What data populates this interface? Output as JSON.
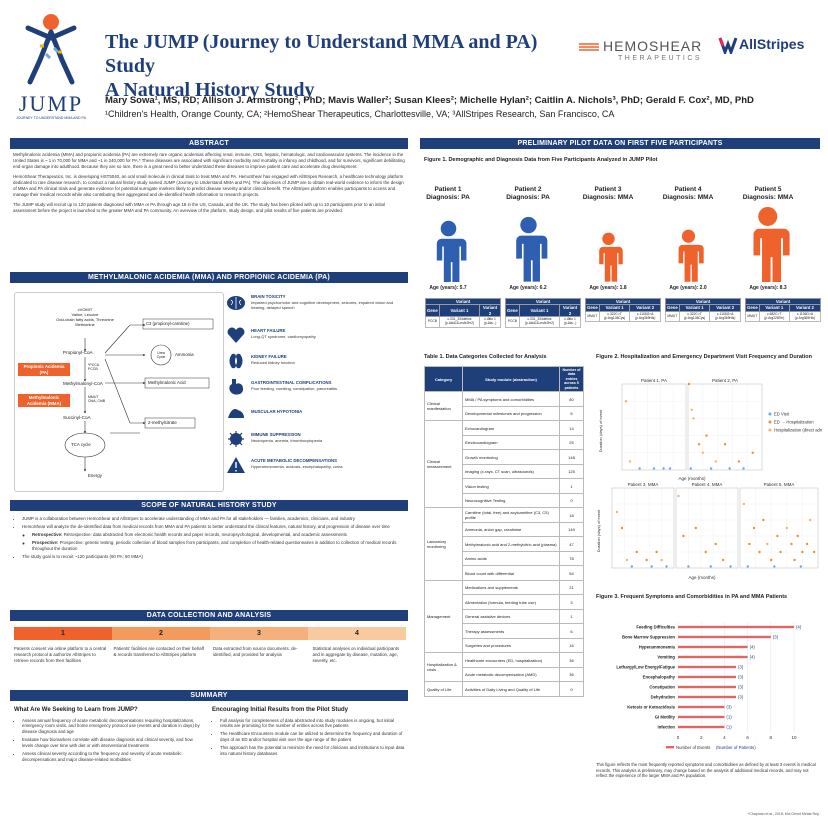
{
  "header": {
    "title_line1": "The JUMP (Journey to Understand MMA and PA) Study",
    "title_line2": "A Natural History Study",
    "authors": "Mary Sowa¹, MS, RD; Allison J. Armstrong², PhD; Mavis Waller²; Susan Klees²; Michelle Hylan²; Caitlin A. Nichols³, PhD; Gerald F. Cox², MD, PhD",
    "affiliations": "¹Children's Health, Orange County, CA; ²HemoShear Therapeutics, Charlottesville, VA; ³AllStripes Research, San Francisco, CA",
    "logo_jump": "JUMP",
    "logo_jump_sub": "JOURNEY TO UNDERSTAND MMA AND PA",
    "logo_hemoshear": "HEMOSHEAR",
    "logo_hemoshear_sub": "THERAPEUTICS",
    "logo_allstripes": "AllStripes"
  },
  "abstract": {
    "heading": "ABSTRACT",
    "p1": "Methylmalonic acidemia (MMA) and propionic acidemia (PA) are extremely rare organic acidemias affecting renal, immune, CNS, hepatic, hematologic, and cardiovascular systems. The incidence in the United States is ~ 1 in 70,000 for MMA and ~1 in 240,000 for PA.* These diseases are associated with significant morbidity and mortality in infancy and childhood, and for survivors, significant debilitating end-organ damage into adulthood. Because they are so rare, there is a great need to better understand these diseases to improve patient care and accelerate drug development.",
    "p2": "HemoShear Therapeutics, Inc. is developing HST5040, an oral small molecule in clinical trials to treat MMA and PA. HemoShear has engaged with AllStripes Research, a healthcare technology platform dedicated to rare disease research, to conduct a natural history study named JUMP (Journey to Understand MMA and PA). The objectives of JUMP are to obtain real-world evidence to inform the design of MMA and PA clinical trials and generate evidence for potential surrogate markers likely to predict disease severity and/or clinical benefit. The AllStripes platform enables participants to access and manage their medical records while also contributing their aggregated and de-identified health information to research projects.",
    "p3": "The JUMP study will recruit up to 120 patients diagnosed with MMA or PA through age 18 in the US, Canada, and the UK. The study has been piloted with up to 10 participants prior to an initial assessment before the project is launched to the greater MMA and PA community. An overview of the platform, study design, and pilot results of five patients are provided."
  },
  "pathway": {
    "heading": "METHYLMALONIC ACIDEMIA (MMA) AND PROPIONIC ACIDEMIA (PA)",
    "labels": {
      "sources": "cVOMIT\nValine, Leucine\nOdd-chain fatty acids, Threonine\nMethionine",
      "propionyl": "Propionyl-CoA",
      "pa_box": "Propionic Acidemia (PA)",
      "mma_box": "Methylmalonic Acidemia (MMA)",
      "pcca": "*PCCA\nPCCB",
      "methylmalonyl": "Methylmalonyl-CoA",
      "mut": "MMUT\nCblA, CblB",
      "succinyl": "Succinyl-CoA",
      "tca": "TCA cycle",
      "energy": "Energy",
      "c3": "C3 (propionyl-carnitine)",
      "urea": "Urea Cycle",
      "ammonia": "Ammonia",
      "mma_acid": "Methylmalonic Acid",
      "methylcitrate": "2-methylcitrate"
    },
    "organs": [
      {
        "title": "BRAIN TOXICITY",
        "desc": "Impaired psychomotor and cognitive development, seizures, impaired vision and hearing, delayed speech",
        "icon": "brain-icon"
      },
      {
        "title": "HEART FAILURE",
        "desc": "Long-QT syndrome, cardiomyopathy",
        "icon": "heart-icon"
      },
      {
        "title": "KIDNEY FAILURE",
        "desc": "Reduced kidney function",
        "icon": "kidney-icon"
      },
      {
        "title": "GASTROINTESTINAL COMPLICATIONS",
        "desc": "Poor feeding, vomiting, constipation, pancreatitis",
        "icon": "stomach-icon"
      },
      {
        "title": "MUSCULAR HYPOTONIA",
        "desc": "",
        "icon": "muscle-icon"
      },
      {
        "title": "IMMUNE SUPPRESSION",
        "desc": "Neutropenia, anemia, thrombocytopenia",
        "icon": "immune-icon"
      },
      {
        "title": "ACUTE METABOLIC DECOMPENSATIONS",
        "desc": "Hyperammonemia, acidosis, encephalopathy, coma",
        "icon": "alert-icon"
      }
    ]
  },
  "scope": {
    "heading": "SCOPE OF NATURAL HISTORY STUDY",
    "b1": "JUMP is a collaboration between HemoShear and AllStripes to accelerate understanding of MMA and PA for all stakeholders — families, academics, clinicians, and industry",
    "b2": "HemoShear will analyze the de-identified data from medical records from MMA and PA patients to better understand the clinical features, natural history, and progression of disease over time",
    "s1": "Retrospective: data abstracted from electronic health records and paper records, neuropsychological, developmental, and academic assessments",
    "s2": "Prospective: genetic testing, periodic collection of blood samples from participants, and completion of health-related questionnaires in addition to collection of medical records throughout the duration",
    "b3": "The study goal is to recruit ~120 participants (60 PA; 60 MMA)"
  },
  "collection": {
    "heading": "DATA COLLECTION AND ANALYSIS",
    "steps": [
      {
        "num": "1",
        "text": "Patients consent via online platform to a central research protocol & authorize AllStripes to retrieve records from their facilities"
      },
      {
        "num": "2",
        "text": "Patients' facilities are contacted on their behalf & records transferred to AllStripes platform"
      },
      {
        "num": "3",
        "text": "Data extracted from source documents, de-identified, and provided for analysis"
      },
      {
        "num": "4",
        "text": "Statistical analyses on individual participants and in aggregate by disease, mutation, age, severity, etc."
      }
    ]
  },
  "summary": {
    "heading": "SUMMARY",
    "left_title": "What Are We Seeking to Learn from JUMP?",
    "left": [
      "Assess annual frequency of acute metabolic decompensations requiring hospitalizations, emergency room visits, and home emergency protocol use (events and duration in days) by disease diagnosis and age",
      "Evaluate how biomarkers correlate with disease diagnosis and clinical severity, and how levels change over time with diet or with interventional treatments",
      "Assess clinical severity according to the frequency and severity of acute metabolic decompensations and major disease-related morbidities"
    ],
    "right_title": "Encouraging Initial Results from the Pilot Study",
    "right": [
      "Full analysis for completeness of data abstracted into study modules is ongoing, but initial results are promising for the number of entries across five patients",
      "The Healthcare Encounters module can be utilized to determine the frequency and duration of days of an ED and/or hospital visit over the age range of the patient",
      "This approach has the potential to minimize the need for clinicians and institutions to input data into natural history databases"
    ]
  },
  "pilot": {
    "heading": "PRELIMINARY PILOT DATA ON FIRST FIVE PARTICIPANTS",
    "fig1_title": "Figure 1. Demographic and Diagnosis Data from Five Participants Analyzed in JUMP Pilot",
    "patients": [
      {
        "name": "Patient 1",
        "dx": "Diagnosis: PA",
        "age": "Age (years): 5.7",
        "color": "#2f5fb0",
        "gene": "PCCB",
        "v1": "c.331_334delins (p.Ala111LeufsTer2)",
        "v2": "c.ditto 1 (p.Ala...)"
      },
      {
        "name": "Patient 2",
        "dx": "Diagnosis: PA",
        "age": "Age (years): 6.2",
        "color": "#2f5fb0",
        "gene": "PCCB",
        "v1": "c.331_334delins (p.Ala111LeufsTer2)",
        "v2": "c.ditto 1 (p.Ala...)"
      },
      {
        "name": "Patient 3",
        "dx": "Diagnosis: MMA",
        "age": "Age (years): 1.8",
        "color": "#f0622b",
        "gene": "MMUT",
        "v1": "c.322C>T (p.Arg108Cys)",
        "v2": "c.1106G>A (p.Arg369His)"
      },
      {
        "name": "Patient 4",
        "dx": "Diagnosis: MMA",
        "age": "Age (years): 2.0",
        "color": "#f0622b",
        "gene": "MMUT",
        "v1": "c.322C>T (p.Arg108Cys)",
        "v2": "c.1106G>A (p.Arg369His)"
      },
      {
        "name": "Patient 5",
        "dx": "Diagnosis: MMA",
        "age": "Age (years): 8.3",
        "color": "#f0622b",
        "gene": "MMUT",
        "v1": "c.682C>T (p.Arg228Ter)",
        "v2": "c.1106G>A (p.Arg369His)"
      }
    ],
    "variant_headers": [
      "Variant",
      "Gene",
      "Variant 1",
      "Variant 2"
    ],
    "table1_title": "Table 1. Data Categories Collected for Analysis",
    "table1_headers": [
      "Category",
      "Study module (abstraction)",
      "Number of data entries across 5 patients"
    ],
    "table1_rows": [
      {
        "cat": "Clinical manifestation",
        "mod": "MMA / PA symptoms and comorbidities",
        "n": "80"
      },
      {
        "cat": "",
        "mod": "Developmental milestones and progression",
        "n": "5"
      },
      {
        "cat": "Clinical measurement",
        "mod": "Echocardiogram",
        "n": "14"
      },
      {
        "cat": "",
        "mod": "Electrocardiogram",
        "n": "25"
      },
      {
        "cat": "",
        "mod": "Growth monitoring",
        "n": "148"
      },
      {
        "cat": "",
        "mod": "Imaging (x-rays, CT scan, ultrasounds)",
        "n": "125"
      },
      {
        "cat": "",
        "mod": "Vision testing",
        "n": "1"
      },
      {
        "cat": "",
        "mod": "Neurocognitive Testing",
        "n": "0"
      },
      {
        "cat": "Laboratory monitoring",
        "mod": "Carnitine (total, free) and acylcarnitine (C3, C5) profile",
        "n": "18"
      },
      {
        "cat": "",
        "mod": "Ammonia, anion gap, creatinine",
        "n": "149"
      },
      {
        "cat": "",
        "mod": "Methylmalonic acid and 2-methylcitric acid (plasma)",
        "n": "47"
      },
      {
        "cat": "",
        "mod": "Amino acids",
        "n": "78"
      },
      {
        "cat": "",
        "mod": "Blood count with differential",
        "n": "54"
      },
      {
        "cat": "Management",
        "mod": "Medications and supplements",
        "n": "21"
      },
      {
        "cat": "",
        "mod": "Alimentation (formula, feeding tube use)",
        "n": "3"
      },
      {
        "cat": "",
        "mod": "General assistive devices",
        "n": "1"
      },
      {
        "cat": "",
        "mod": "Therapy assessments",
        "n": "6"
      },
      {
        "cat": "",
        "mod": "Surgeries and procedures",
        "n": "16"
      },
      {
        "cat": "Hospitalization & crisis",
        "mod": "Healthcare encounters (ED, hospitalization)",
        "n": "36"
      },
      {
        "cat": "",
        "mod": "Acute metabolic decompensation (AMD)",
        "n": "36"
      },
      {
        "cat": "Quality of Life",
        "mod": "Activities of Daily Living and Quality of Life",
        "n": "0"
      }
    ],
    "fig2_title": "Figure 2. Hospitalization and Emergency Department Visit Frequency and Duration",
    "fig3_title": "Figure 3. Frequent Symptoms and Comorbidities in PA and MMA Patients",
    "fig3_caption": "This figure reflects the most frequently reported symptoms and comorbidities as defined by at least 3 events in medical records. This analysis is preliminary, may change based on the analysis of additional medical records, and may not reflect the experience of the larger MMA and PA population.",
    "footnote": "*Chapman et al., 2018; Mol Genet Metab Rep."
  },
  "chart_data": [
    {
      "type": "scatter",
      "title": "Figure 2. Hospitalization and Emergency Department Visit Frequency and Duration",
      "xlabel": "Age (months)",
      "ylabel": "Duration (days) of event",
      "legend": [
        "ED Visit",
        "ED → Hospitalization",
        "Hospitalization (direct admit)"
      ],
      "legend_colors": [
        "#6fa8dc",
        "#e69138",
        "#f6b26b"
      ],
      "legend_placement": "right",
      "panels": [
        {
          "name": "Patient 1, PA",
          "xlim": [
            0,
            80
          ],
          "ylim": [
            0,
            10
          ],
          "points": [
            [
              5,
              8,
              2
            ],
            [
              10,
              1,
              2
            ],
            [
              22,
              0,
              0
            ],
            [
              40,
              0,
              0
            ],
            [
              52,
              0,
              0
            ],
            [
              60,
              0,
              0
            ]
          ]
        },
        {
          "name": "Patient 2, PA",
          "xlim": [
            0,
            80
          ],
          "ylim": [
            0,
            10
          ],
          "points": [
            [
              1,
              10,
              1
            ],
            [
              4,
              7,
              2
            ],
            [
              6,
              6,
              2
            ],
            [
              12,
              3,
              1
            ],
            [
              16,
              2,
              2
            ],
            [
              20,
              4,
              1
            ],
            [
              30,
              1,
              2
            ],
            [
              40,
              3,
              1
            ],
            [
              55,
              1,
              1
            ],
            [
              70,
              2,
              1
            ],
            [
              3,
              0,
              0
            ],
            [
              25,
              0,
              0
            ],
            [
              45,
              0,
              0
            ],
            [
              60,
              0,
              0
            ]
          ]
        },
        {
          "name": "Patient 3, MMA",
          "xlim": [
            0,
            25
          ],
          "ylim": [
            0,
            10
          ],
          "points": [
            [
              2,
              7,
              2
            ],
            [
              4,
              5,
              1
            ],
            [
              6,
              1,
              2
            ],
            [
              10,
              2,
              1
            ],
            [
              14,
              1,
              1
            ],
            [
              18,
              2,
              1
            ],
            [
              20,
              1,
              2
            ],
            [
              8,
              0,
              0
            ],
            [
              16,
              0,
              0
            ],
            [
              22,
              0,
              0
            ]
          ]
        },
        {
          "name": "Patient 4, MMA",
          "xlim": [
            0,
            25
          ],
          "ylim": [
            0,
            10
          ],
          "points": [
            [
              1,
              9,
              2
            ],
            [
              3,
              4,
              1
            ],
            [
              8,
              5,
              1
            ],
            [
              12,
              2,
              1
            ],
            [
              16,
              3,
              1
            ],
            [
              19,
              1,
              1
            ],
            [
              5,
              0,
              0
            ],
            [
              14,
              0,
              0
            ],
            [
              22,
              0,
              0
            ]
          ]
        },
        {
          "name": "Patient 5, MMA",
          "xlim": [
            0,
            100
          ],
          "ylim": [
            0,
            10
          ],
          "points": [
            [
              5,
              8,
              2
            ],
            [
              12,
              3,
              1
            ],
            [
              18,
              5,
              1
            ],
            [
              25,
              2,
              1
            ],
            [
              30,
              6,
              1
            ],
            [
              35,
              3,
              2
            ],
            [
              40,
              1,
              1
            ],
            [
              48,
              4,
              1
            ],
            [
              52,
              2,
              1
            ],
            [
              60,
              5,
              2
            ],
            [
              66,
              3,
              1
            ],
            [
              70,
              1,
              1
            ],
            [
              74,
              4,
              1
            ],
            [
              80,
              2,
              1
            ],
            [
              86,
              3,
              1
            ],
            [
              90,
              6,
              2
            ],
            [
              95,
              2,
              1
            ],
            [
              10,
              0,
              0
            ],
            [
              44,
              0,
              0
            ],
            [
              78,
              0,
              0
            ]
          ]
        }
      ]
    },
    {
      "type": "bar",
      "orientation": "horizontal",
      "title": "Figure 3. Frequent Symptoms and Comorbidities in PA and MMA Patients",
      "categories": [
        "Feeding Difficulties",
        "Bone Marrow Suppression",
        "Hyperammonemia",
        "Vomiting",
        "Lethargy/Low Energy/Fatigue",
        "Encephalopathy",
        "Constipation",
        "Dehydration",
        "Ketosis or Ketoacidosis",
        "GI Motility",
        "Infection"
      ],
      "values": [
        10,
        8,
        6,
        6,
        5,
        5,
        5,
        5,
        4,
        4,
        4
      ],
      "participants": [
        "(4)",
        "(3)",
        "(4)",
        "(4)",
        "(3)",
        "(3)",
        "(3)",
        "(3)",
        "(3)",
        "(1)",
        "(1)"
      ],
      "xlim": [
        0,
        10
      ],
      "xticks": [
        "0",
        "2",
        "4",
        "6",
        "8",
        "10"
      ],
      "legend": [
        "Number of Events",
        "(Number of Patients)"
      ],
      "bar_color": "#e06666",
      "label_color": "#1f3f7a"
    }
  ]
}
